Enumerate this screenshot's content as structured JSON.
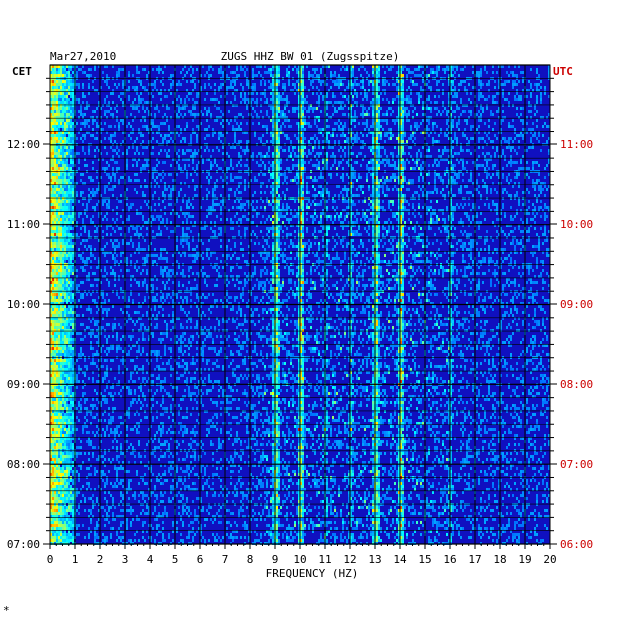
{
  "chart_data": {
    "type": "heatmap",
    "date": "Mar27,2010",
    "title": "ZUGS HHZ BW 01 (Zugsspitze)",
    "left_tz": "CET",
    "right_tz": "UTC",
    "xlabel": "FREQUENCY (HZ)",
    "x_ticks": [
      "0",
      "1",
      "2",
      "3",
      "4",
      "5",
      "6",
      "7",
      "8",
      "9",
      "10",
      "11",
      "12",
      "13",
      "14",
      "15",
      "16",
      "17",
      "18",
      "19",
      "20"
    ],
    "xlim": [
      0,
      20
    ],
    "left_ticks": [
      "12:00",
      "11:00",
      "10:00",
      "09:00",
      "08:00",
      "07:00"
    ],
    "right_ticks": [
      "11:00",
      "10:00",
      "09:00",
      "08:00",
      "07:00",
      "06:00"
    ],
    "colors": {
      "background": "#1010c0",
      "grid": "#000000",
      "right_axis_text": "#cc0000",
      "left_axis_text": "#000000"
    },
    "features": {
      "low_freq_band_hz": [
        0,
        1
      ],
      "strong_lines_hz": [
        9,
        10,
        13,
        14
      ],
      "weak_lines_hz": [
        11,
        12,
        16
      ]
    }
  },
  "footnote": "*"
}
